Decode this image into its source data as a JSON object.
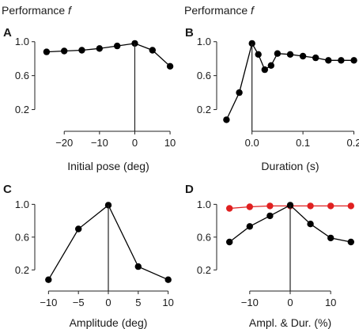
{
  "header": {
    "left": {
      "text": "Performance ",
      "var": "f"
    },
    "right": {
      "text": "Performance ",
      "var": "f"
    }
  },
  "chart_data": [
    {
      "panel": "A",
      "type": "line",
      "xlabel": "Initial pose (deg)",
      "ylabel": "Performance f",
      "xlim": [
        -27,
        12
      ],
      "ylim": [
        0,
        1.1
      ],
      "xticks": [
        -20,
        -10,
        0,
        10
      ],
      "xtick_labels": [
        "−20",
        "−10",
        "0",
        "10"
      ],
      "yticks": [
        0.2,
        0.6,
        1.0
      ],
      "ytick_labels": [
        "0.2",
        "0.6",
        "1.0"
      ],
      "vline": 0,
      "series": [
        {
          "color": "#000000",
          "x": [
            -25,
            -20,
            -15,
            -10,
            -5,
            0,
            5,
            10
          ],
          "y": [
            0.88,
            0.89,
            0.9,
            0.92,
            0.95,
            0.98,
            0.9,
            0.71
          ]
        }
      ]
    },
    {
      "panel": "B",
      "type": "line",
      "xlabel": "Duration (s)",
      "ylabel": "Performance f",
      "xlim": [
        -0.06,
        0.21
      ],
      "ylim": [
        0,
        1.1
      ],
      "xticks": [
        0.0,
        0.1,
        0.2
      ],
      "xtick_labels": [
        "0.0",
        "0.1",
        "0.2"
      ],
      "yticks": [
        0.2,
        0.6,
        1.0
      ],
      "ytick_labels": [
        "0.2",
        "0.6",
        "1.0"
      ],
      "vline": 0,
      "series": [
        {
          "color": "#000000",
          "x": [
            -0.05,
            -0.025,
            0.0,
            0.0125,
            0.025,
            0.0375,
            0.05,
            0.075,
            0.1,
            0.125,
            0.15,
            0.175,
            0.2
          ],
          "y": [
            0.08,
            0.4,
            0.98,
            0.85,
            0.67,
            0.72,
            0.86,
            0.85,
            0.83,
            0.81,
            0.78,
            0.78,
            0.78
          ]
        }
      ]
    },
    {
      "panel": "C",
      "type": "line",
      "xlabel": "Amplitude (deg)",
      "ylabel": "Performance f",
      "xlim": [
        -11.5,
        11.5
      ],
      "ylim": [
        0,
        1.1
      ],
      "xticks": [
        -10,
        -5,
        0,
        5,
        10
      ],
      "xtick_labels": [
        "−10",
        "−5",
        "0",
        "5",
        "10"
      ],
      "yticks": [
        0.2,
        0.6,
        1.0
      ],
      "ytick_labels": [
        "0.2",
        "0.6",
        "1.0"
      ],
      "vline": 0,
      "series": [
        {
          "color": "#000000",
          "x": [
            -10,
            -5,
            0,
            5,
            10
          ],
          "y": [
            0.08,
            0.7,
            0.99,
            0.24,
            0.08
          ]
        }
      ]
    },
    {
      "panel": "D",
      "type": "line",
      "xlabel": "Ampl. & Dur. (%)",
      "ylabel": "Performance f",
      "xlim": [
        -17,
        17
      ],
      "ylim": [
        0,
        1.1
      ],
      "xticks": [
        -10,
        0,
        10
      ],
      "xtick_labels": [
        "−10",
        "0",
        "10"
      ],
      "yticks": [
        0.2,
        0.6,
        1.0
      ],
      "ytick_labels": [
        "0.2",
        "0.6",
        "1.0"
      ],
      "vline": 0,
      "series": [
        {
          "color": "#e02020",
          "x": [
            -15,
            -10,
            -5,
            0,
            5,
            10,
            15
          ],
          "y": [
            0.95,
            0.97,
            0.98,
            0.98,
            0.98,
            0.98,
            0.98
          ]
        },
        {
          "color": "#000000",
          "x": [
            -15,
            -10,
            -5,
            0,
            5,
            10,
            15
          ],
          "y": [
            0.54,
            0.73,
            0.86,
            0.99,
            0.76,
            0.59,
            0.54
          ]
        }
      ]
    }
  ]
}
